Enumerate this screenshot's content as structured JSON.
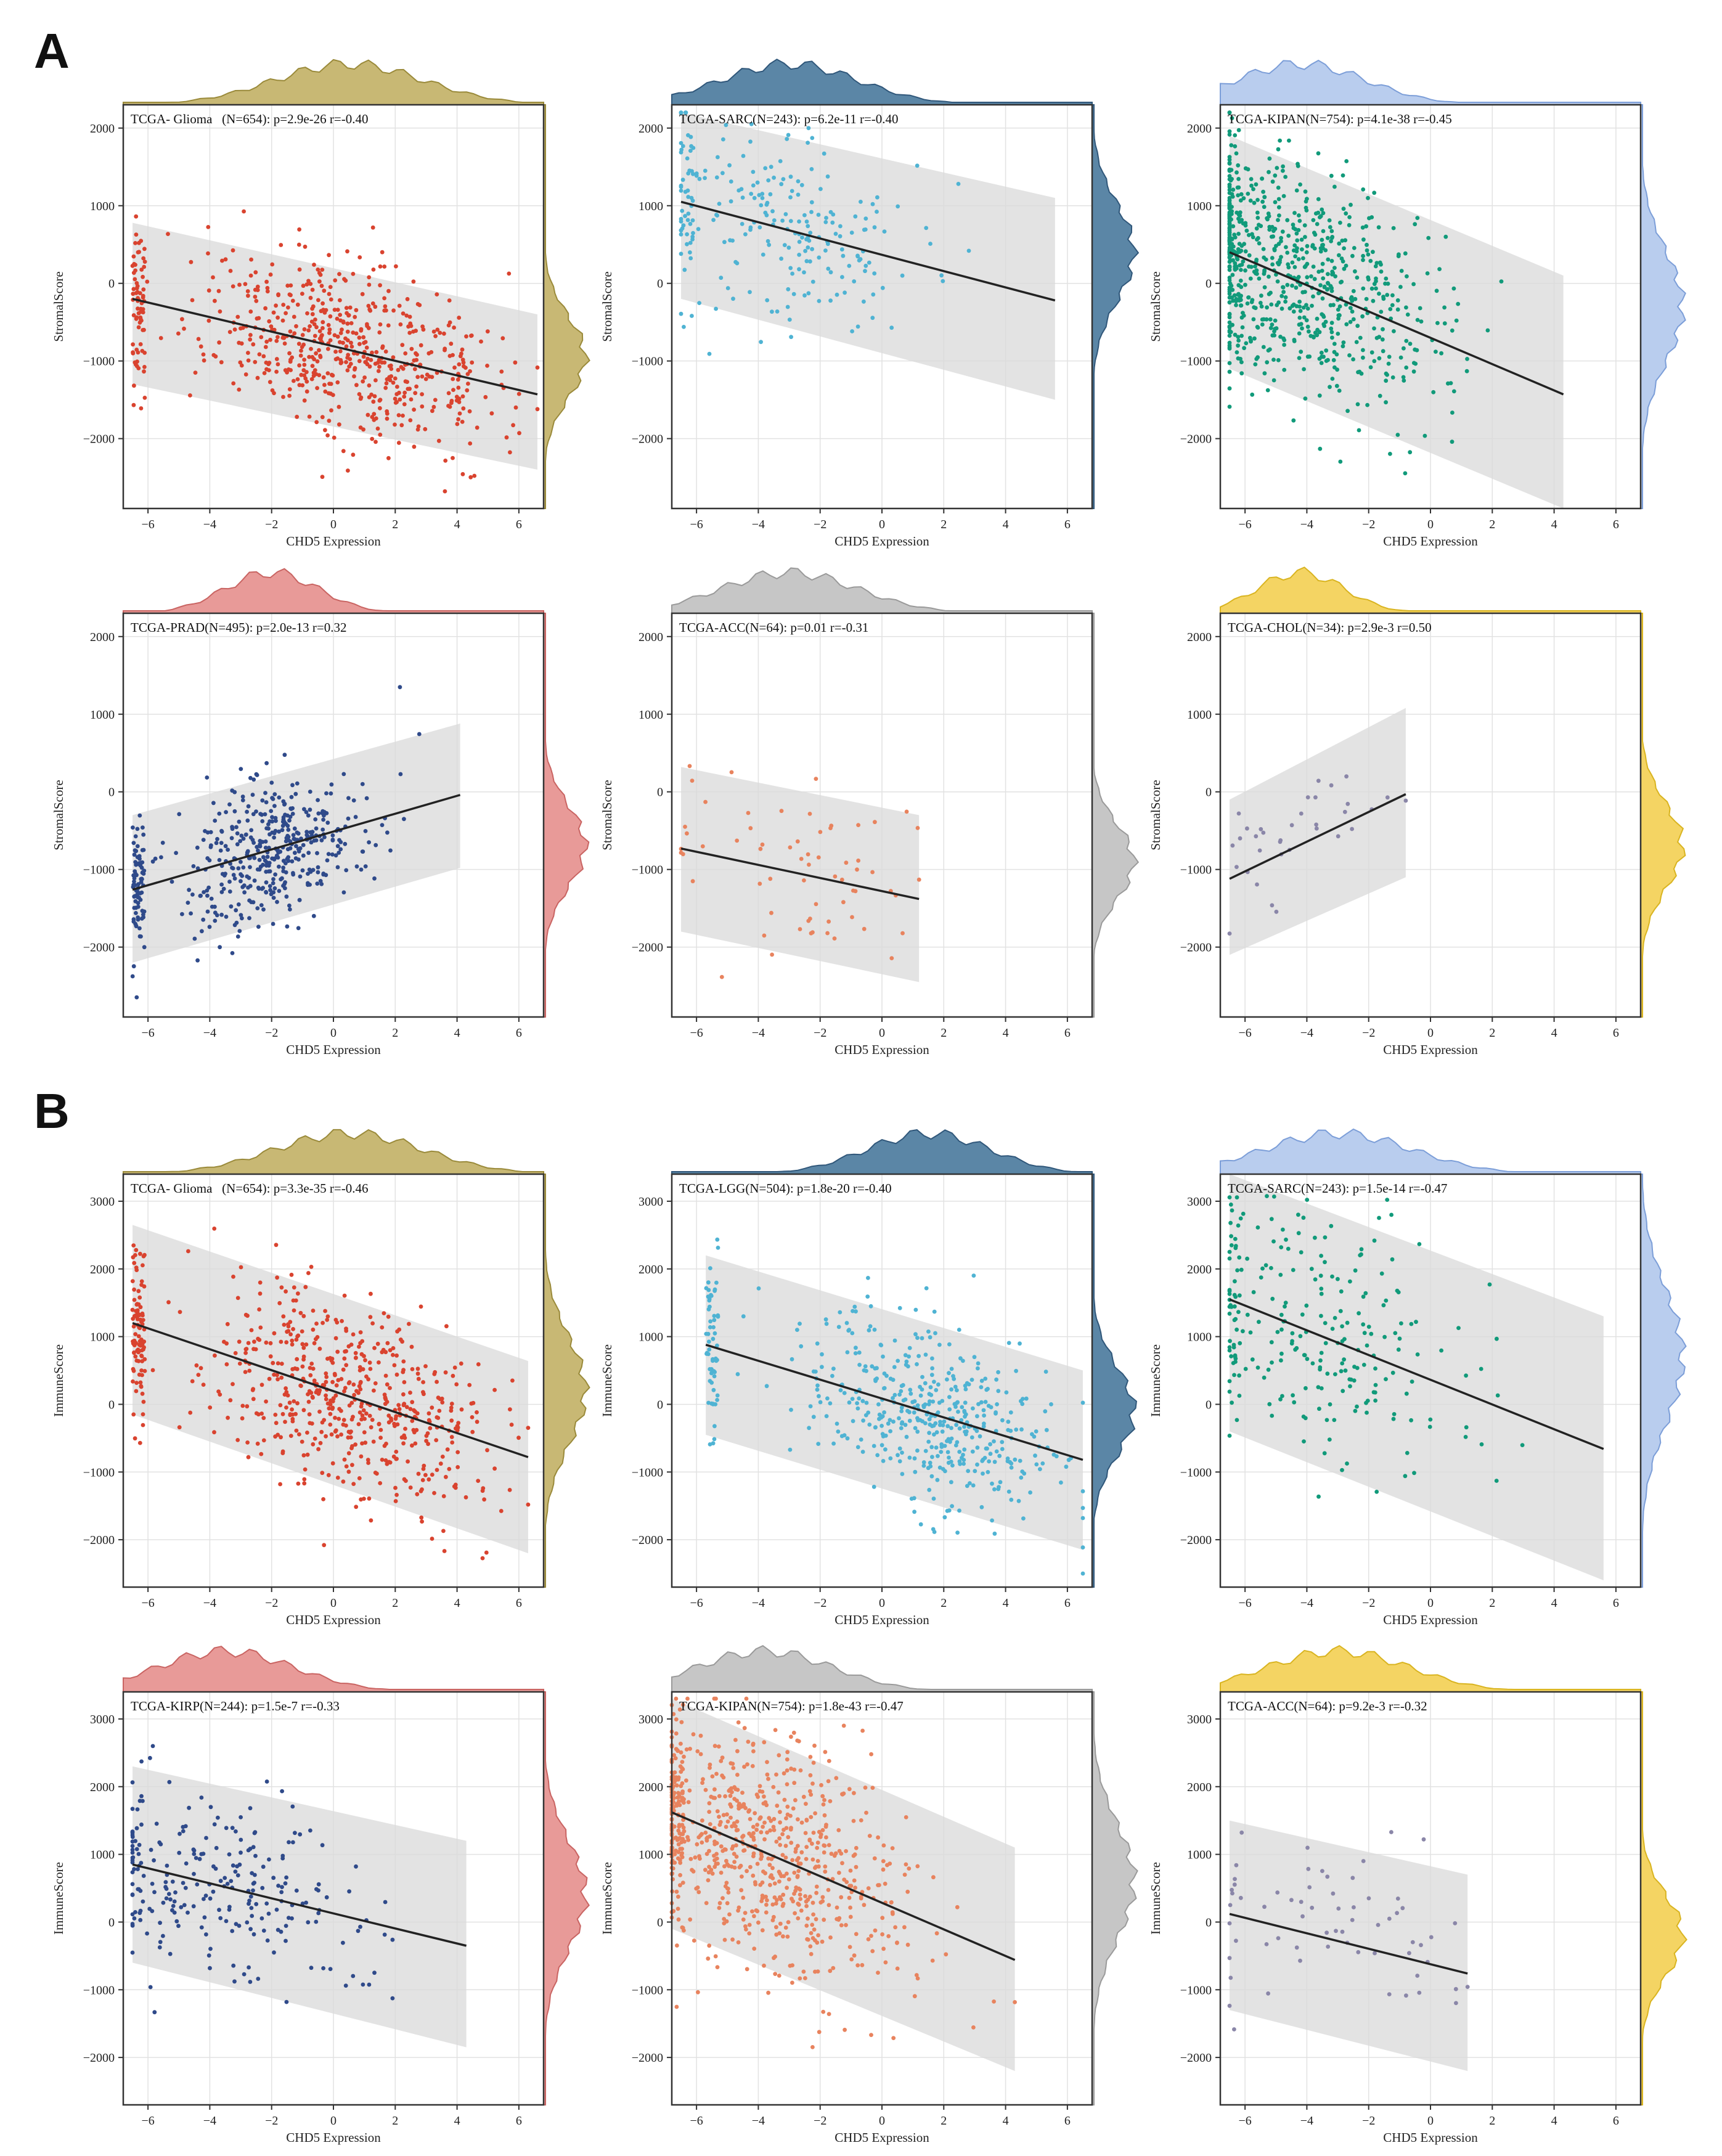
{
  "figure": {
    "panel_labels": [
      "A",
      "B"
    ]
  },
  "chart_data": [
    {
      "type": "scatter",
      "panel": "A",
      "title": "TCGA- Glioma   (N=654): p=2.9e-26 r=-0.40",
      "xlabel": "CHD5 Expression",
      "ylabel": "StromalScore",
      "xticks": [
        -6,
        -4,
        -2,
        0,
        2,
        4,
        6
      ],
      "yticks": [
        -2000,
        -1000,
        0,
        1000,
        2000
      ],
      "xlim": [
        -6.8,
        6.8
      ],
      "ylim": [
        -2900,
        2300
      ],
      "regression": {
        "x": [
          -6.5,
          6.6
        ],
        "y": [
          -200,
          -1430
        ]
      },
      "band": {
        "upper": [
          780,
          -400
        ],
        "lower": [
          -1300,
          -2400
        ]
      },
      "points_n": 654,
      "point_color": "#d9432f",
      "x_dist": {
        "mean": 0.5,
        "sd": 2.4
      },
      "y_dist": {
        "mean": -950,
        "sd": 520
      },
      "density_color": "#c8b874",
      "density_stroke": "#9a8a3a",
      "band_hint": [
        -6.5,
        6.6
      ]
    },
    {
      "type": "scatter",
      "panel": "A",
      "title": "TCGA-SARC(N=243): p=6.2e-11 r=-0.40",
      "xlabel": "CHD5 Expression",
      "ylabel": "StromalScore",
      "xticks": [
        -6,
        -4,
        -2,
        0,
        2,
        4,
        6
      ],
      "yticks": [
        -2000,
        -1000,
        0,
        1000,
        2000
      ],
      "xlim": [
        -6.8,
        6.8
      ],
      "ylim": [
        -2900,
        2300
      ],
      "regression": {
        "x": [
          -6.5,
          5.6
        ],
        "y": [
          1050,
          -220
        ]
      },
      "band": {
        "upper": [
          2200,
          1100
        ],
        "lower": [
          -200,
          -1500
        ]
      },
      "points_n": 243,
      "point_color": "#4fb3d3",
      "x_dist": {
        "mean": -3,
        "sd": 2.2
      },
      "y_dist": {
        "mean": 400,
        "sd": 620
      },
      "density_color": "#5b86a6",
      "density_stroke": "#30577a",
      "band_hint": [
        -6.5,
        5.6
      ]
    },
    {
      "type": "scatter",
      "panel": "A",
      "title": "TCGA-KIPAN(N=754): p=4.1e-38 r=-0.45",
      "xlabel": "CHD5 Expression",
      "ylabel": "StromalScore",
      "xticks": [
        -6,
        -4,
        -2,
        0,
        2,
        4,
        6
      ],
      "yticks": [
        -2000,
        -1000,
        0,
        1000,
        2000
      ],
      "xlim": [
        -6.8,
        6.8
      ],
      "ylim": [
        -2900,
        2300
      ],
      "regression": {
        "x": [
          -6.5,
          4.3
        ],
        "y": [
          400,
          -1430
        ]
      },
      "band": {
        "upper": [
          1900,
          100
        ],
        "lower": [
          -1100,
          -2900
        ]
      },
      "points_n": 754,
      "point_color": "#119a7a",
      "x_dist": {
        "mean": -4.2,
        "sd": 2.1
      },
      "y_dist": {
        "mean": -300,
        "sd": 720
      },
      "density_color": "#b9cdee",
      "density_stroke": "#7c9ed8",
      "band_hint": [
        -6.5,
        4.3
      ]
    },
    {
      "type": "scatter",
      "panel": "A",
      "title": "TCGA-PRAD(N=495): p=2.0e-13 r=0.32",
      "xlabel": "CHD5 Expression",
      "ylabel": "StromalScore",
      "xticks": [
        -6,
        -4,
        -2,
        0,
        2,
        4,
        6
      ],
      "yticks": [
        -2000,
        -1000,
        0,
        1000,
        2000
      ],
      "xlim": [
        -6.8,
        6.8
      ],
      "ylim": [
        -2900,
        2300
      ],
      "regression": {
        "x": [
          -6.5,
          4.1
        ],
        "y": [
          -1260,
          -40
        ]
      },
      "band": {
        "upper": [
          -300,
          880
        ],
        "lower": [
          -2200,
          -980
        ]
      },
      "points_n": 495,
      "point_color": "#2f4a8a",
      "x_dist": {
        "mean": -2,
        "sd": 1.5
      },
      "y_dist": {
        "mean": -700,
        "sd": 520
      },
      "density_color": "#e89a98",
      "density_stroke": "#c96462",
      "band_hint": [
        -6.5,
        4.1
      ]
    },
    {
      "type": "scatter",
      "panel": "A",
      "title": "TCGA-ACC(N=64): p=0.01 r=-0.31",
      "xlabel": "CHD5 Expression",
      "ylabel": "StromalScore",
      "xticks": [
        -6,
        -4,
        -2,
        0,
        2,
        4,
        6
      ],
      "yticks": [
        -2000,
        -1000,
        0,
        1000,
        2000
      ],
      "xlim": [
        -6.8,
        6.8
      ],
      "ylim": [
        -2900,
        2300
      ],
      "regression": {
        "x": [
          -6.5,
          1.2
        ],
        "y": [
          -730,
          -1380
        ]
      },
      "band": {
        "upper": [
          320,
          -300
        ],
        "lower": [
          -1800,
          -2450
        ]
      },
      "points_n": 64,
      "point_color": "#e8835e",
      "x_dist": {
        "mean": -3,
        "sd": 2.2
      },
      "y_dist": {
        "mean": -900,
        "sd": 480
      },
      "density_color": "#c6c6c6",
      "density_stroke": "#9a9a9a",
      "band_hint": [
        -6.5,
        1.2
      ]
    },
    {
      "type": "scatter",
      "panel": "A",
      "title": "TCGA-CHOL(N=34): p=2.9e-3 r=0.50",
      "xlabel": "CHD5 Expression",
      "ylabel": "StromalScore",
      "xticks": [
        -6,
        -4,
        -2,
        0,
        2,
        4,
        6
      ],
      "yticks": [
        -2000,
        -1000,
        0,
        1000,
        2000
      ],
      "xlim": [
        -6.8,
        6.8
      ],
      "ylim": [
        -2900,
        2300
      ],
      "regression": {
        "x": [
          -6.5,
          -0.8
        ],
        "y": [
          -1120,
          -30
        ]
      },
      "band": {
        "upper": [
          -100,
          1080
        ],
        "lower": [
          -2100,
          -1100
        ]
      },
      "points_n": 34,
      "point_color": "#8a86a8",
      "x_dist": {
        "mean": -4.2,
        "sd": 1.4
      },
      "y_dist": {
        "mean": -700,
        "sd": 550
      },
      "density_color": "#f4d463",
      "density_stroke": "#d9b420",
      "band_hint": [
        -6.5,
        -0.8
      ]
    },
    {
      "type": "scatter",
      "panel": "B",
      "title": "TCGA- Glioma   (N=654): p=3.3e-35 r=-0.46",
      "xlabel": "CHD5 Expression",
      "ylabel": "ImmuneScore",
      "xticks": [
        -6,
        -4,
        -2,
        0,
        2,
        4,
        6
      ],
      "yticks": [
        -2000,
        -1000,
        0,
        1000,
        2000,
        3000
      ],
      "xlim": [
        -6.8,
        6.8
      ],
      "ylim": [
        -2700,
        3400
      ],
      "regression": {
        "x": [
          -6.5,
          6.3
        ],
        "y": [
          1200,
          -780
        ]
      },
      "band": {
        "upper": [
          2650,
          640
        ],
        "lower": [
          -150,
          -2200
        ]
      },
      "points_n": 654,
      "point_color": "#d9432f",
      "x_dist": {
        "mean": 0.5,
        "sd": 2.4
      },
      "y_dist": {
        "mean": 200,
        "sd": 800
      },
      "density_color": "#c8b874",
      "density_stroke": "#9a8a3a",
      "band_hint": [
        -6.5,
        6.3
      ]
    },
    {
      "type": "scatter",
      "panel": "B",
      "title": "TCGA-LGG(N=504): p=1.8e-20 r=-0.40",
      "xlabel": "CHD5 Expression",
      "ylabel": "ImmuneScore",
      "xticks": [
        -6,
        -4,
        -2,
        0,
        2,
        4,
        6
      ],
      "yticks": [
        -2000,
        -1000,
        0,
        1000,
        2000,
        3000
      ],
      "xlim": [
        -6.8,
        6.8
      ],
      "ylim": [
        -2700,
        3400
      ],
      "regression": {
        "x": [
          -5.7,
          6.5
        ],
        "y": [
          880,
          -820
        ]
      },
      "band": {
        "upper": [
          2200,
          500
        ],
        "lower": [
          -450,
          -2150
        ]
      },
      "points_n": 504,
      "point_color": "#4fb3d3",
      "x_dist": {
        "mean": 1.5,
        "sd": 2.0
      },
      "y_dist": {
        "mean": -100,
        "sd": 650
      },
      "density_color": "#5b86a6",
      "density_stroke": "#30577a",
      "band_hint": [
        -5.7,
        6.5
      ]
    },
    {
      "type": "scatter",
      "panel": "B",
      "title": "TCGA-SARC(N=243): p=1.5e-14 r=-0.47",
      "xlabel": "CHD5 Expression",
      "ylabel": "ImmuneScore",
      "xticks": [
        -6,
        -4,
        -2,
        0,
        2,
        4,
        6
      ],
      "yticks": [
        -2000,
        -1000,
        0,
        1000,
        2000,
        3000
      ],
      "xlim": [
        -6.8,
        6.8
      ],
      "ylim": [
        -2700,
        3400
      ],
      "regression": {
        "x": [
          -6.5,
          5.6
        ],
        "y": [
          1550,
          -660
        ]
      },
      "band": {
        "upper": [
          3400,
          1300
        ],
        "lower": [
          -400,
          -2600
        ]
      },
      "points_n": 243,
      "point_color": "#119a7a",
      "x_dist": {
        "mean": -3,
        "sd": 2.4
      },
      "y_dist": {
        "mean": 700,
        "sd": 1000
      },
      "density_color": "#b9cdee",
      "density_stroke": "#7c9ed8",
      "band_hint": [
        -6.5,
        5.6
      ]
    },
    {
      "type": "scatter",
      "panel": "B",
      "title": "TCGA-KIRP(N=244): p=1.5e-7 r=-0.33",
      "xlabel": "CHD5 Expression",
      "ylabel": "ImmuneScore",
      "xticks": [
        -6,
        -4,
        -2,
        0,
        2,
        4,
        6
      ],
      "yticks": [
        -2000,
        -1000,
        0,
        1000,
        2000,
        3000
      ],
      "xlim": [
        -6.8,
        6.8
      ],
      "ylim": [
        -2700,
        3400
      ],
      "regression": {
        "x": [
          -6.5,
          4.3
        ],
        "y": [
          850,
          -350
        ]
      },
      "band": {
        "upper": [
          2300,
          1200
        ],
        "lower": [
          -600,
          -1850
        ]
      },
      "points_n": 244,
      "point_color": "#2f4a8a",
      "x_dist": {
        "mean": -3.5,
        "sd": 2.2
      },
      "y_dist": {
        "mean": 400,
        "sd": 800
      },
      "density_color": "#e89a98",
      "density_stroke": "#c96462",
      "band_hint": [
        -6.5,
        4.3
      ]
    },
    {
      "type": "scatter",
      "panel": "B",
      "title": "TCGA-KIPAN(N=754): p=1.8e-43 r=-0.47",
      "xlabel": "CHD5 Expression",
      "ylabel": "ImmuneScore",
      "xticks": [
        -6,
        -4,
        -2,
        0,
        2,
        4,
        6
      ],
      "yticks": [
        -2000,
        -1000,
        0,
        1000,
        2000,
        3000
      ],
      "xlim": [
        -6.8,
        6.8
      ],
      "ylim": [
        -2700,
        3400
      ],
      "regression": {
        "x": [
          -6.8,
          4.3
        ],
        "y": [
          1620,
          -560
        ]
      },
      "band": {
        "upper": [
          3300,
          1100
        ],
        "lower": [
          -100,
          -2200
        ]
      },
      "points_n": 754,
      "point_color": "#e8835e",
      "x_dist": {
        "mean": -3.8,
        "sd": 2.2
      },
      "y_dist": {
        "mean": 600,
        "sd": 850
      },
      "density_color": "#c6c6c6",
      "density_stroke": "#9a9a9a",
      "band_hint": [
        -6.8,
        4.3
      ]
    },
    {
      "type": "scatter",
      "panel": "B",
      "title": "TCGA-ACC(N=64): p=9.2e-3 r=-0.32",
      "xlabel": "CHD5 Expression",
      "ylabel": "ImmuneScore",
      "xticks": [
        -6,
        -4,
        -2,
        0,
        2,
        4,
        6
      ],
      "yticks": [
        -2000,
        -1000,
        0,
        1000,
        2000,
        3000
      ],
      "xlim": [
        -6.8,
        6.8
      ],
      "ylim": [
        -2700,
        3400
      ],
      "regression": {
        "x": [
          -6.5,
          1.2
        ],
        "y": [
          120,
          -760
        ]
      },
      "band": {
        "upper": [
          1500,
          700
        ],
        "lower": [
          -1300,
          -2200
        ]
      },
      "points_n": 64,
      "point_color": "#8a86a8",
      "x_dist": {
        "mean": -3,
        "sd": 2.3
      },
      "y_dist": {
        "mean": -200,
        "sd": 600
      },
      "density_color": "#f4d463",
      "density_stroke": "#d9b420",
      "band_hint": [
        -6.5,
        1.2
      ]
    }
  ]
}
